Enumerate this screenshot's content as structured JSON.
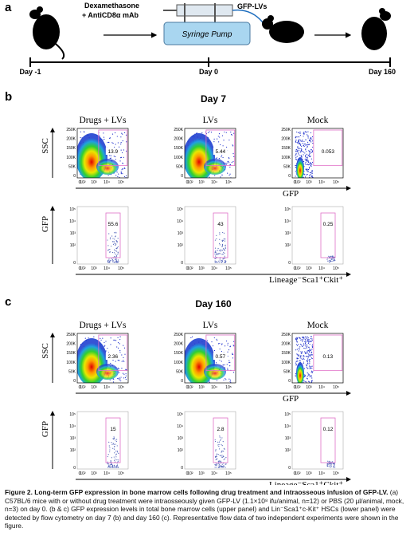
{
  "panel_a": {
    "label": "a",
    "drug": "Dexamethasone",
    "drug2": "+ AntiCD8α mAb",
    "pump": "Syringe Pump",
    "vector": "GFP-LVs",
    "days": [
      "Day -1",
      "Day 0",
      "Day 160"
    ]
  },
  "groups": [
    "Drugs + LVs",
    "LVs",
    "Mock"
  ],
  "axes": {
    "ssc": "SSC",
    "gfp": "GFP",
    "lineage": "Lineage⁻Sca1⁺Ckit⁺",
    "ssc_ticks": [
      "250K",
      "200K",
      "150K",
      "100K",
      "50K",
      "0"
    ],
    "log_ticks": [
      "0",
      "10²",
      "10³",
      "10⁴",
      "10⁵"
    ]
  },
  "panel_b": {
    "label": "b",
    "title": "Day 7",
    "upper": [
      "13.9",
      "5.44",
      "0.053"
    ],
    "lower": [
      "55.6",
      "43",
      "0.25"
    ]
  },
  "panel_c": {
    "label": "c",
    "title": "Day 160",
    "upper": [
      "2.36",
      "0.57",
      "0.13"
    ],
    "lower": [
      "15",
      "2.8",
      "0.12"
    ]
  },
  "caption": {
    "bold": "Figure 2. Long-term GFP expression in bone marrow cells following drug treatment and intraosseous infusion of GFP-LV.",
    "text": " (a) C57BL/6 mice with or without drug treatment were intraosseously given GFP-LV (1.1×10⁸ ifu/animal, n=12) or PBS (20 µl/animal, mock, n=3) on day 0. (b & c) GFP expression levels in total bone marrow cells (upper panel) and Lin⁻Sca1⁺c-Kit⁺ HSCs (lower panel) were detected by flow cytometry on day 7 (b) and day 160 (c). Representative flow data of two independent experiments were shown in the figure."
  }
}
